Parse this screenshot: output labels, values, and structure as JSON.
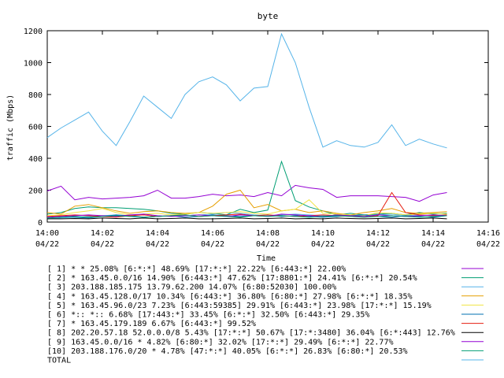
{
  "chart_data": {
    "type": "line",
    "title": "byte",
    "xlabel": "Time",
    "ylabel": "traffic (Mbps)",
    "ylim": [
      0,
      1200
    ],
    "xlim": [
      "14:00",
      "14:16"
    ],
    "yticks": [
      0,
      200,
      400,
      600,
      800,
      1000,
      1200
    ],
    "xticks": [
      {
        "time": "14:00",
        "date": "04/22"
      },
      {
        "time": "14:02",
        "date": "04/22"
      },
      {
        "time": "14:04",
        "date": "04/22"
      },
      {
        "time": "14:06",
        "date": "04/22"
      },
      {
        "time": "14:08",
        "date": "04/22"
      },
      {
        "time": "14:10",
        "date": "04/22"
      },
      {
        "time": "14:12",
        "date": "04/22"
      },
      {
        "time": "14:14",
        "date": "04/22"
      },
      {
        "time": "14:16",
        "date": "04/22"
      }
    ],
    "grid": false,
    "legend_position": "bottom",
    "x": [
      "14:00:00",
      "14:00:30",
      "14:01:00",
      "14:01:30",
      "14:02:00",
      "14:02:30",
      "14:03:00",
      "14:03:30",
      "14:04:00",
      "14:04:30",
      "14:05:00",
      "14:05:30",
      "14:06:00",
      "14:06:30",
      "14:07:00",
      "14:07:30",
      "14:08:00",
      "14:08:30",
      "14:09:00",
      "14:09:30",
      "14:10:00",
      "14:10:30",
      "14:11:00",
      "14:11:30",
      "14:12:00",
      "14:12:30",
      "14:13:00",
      "14:13:30",
      "14:14:00",
      "14:14:30"
    ],
    "series": [
      {
        "name": "[ 1] * * 25.08%  [6:*:*] 48.69% [17:*:*] 22.22% [6:443:*] 22.00%",
        "color": "#9400d3",
        "values": [
          195,
          225,
          140,
          155,
          145,
          150,
          155,
          165,
          200,
          150,
          150,
          160,
          175,
          165,
          170,
          160,
          185,
          165,
          230,
          215,
          205,
          155,
          165,
          165,
          165,
          160,
          155,
          130,
          170,
          185
        ]
      },
      {
        "name": "[ 2] * 163.45.0.0/16 14.90%  [6:443:*] 47.62% [17:8801:*] 24.41% [6:*:*] 20.54%",
        "color": "#009e73",
        "values": [
          50,
          60,
          85,
          95,
          90,
          90,
          85,
          80,
          70,
          55,
          50,
          60,
          55,
          45,
          80,
          60,
          75,
          380,
          135,
          95,
          70,
          45,
          55,
          45,
          50,
          55,
          45,
          60,
          50,
          55
        ]
      },
      {
        "name": "[ 3] 203.188.185.175 13.79.62.200 14.07%  [6:80:52030] 100.00%",
        "color": "#56b4e9",
        "values": [
          20,
          25,
          30,
          35,
          40,
          45,
          35,
          30,
          35,
          40,
          40,
          45,
          50,
          60,
          55,
          45,
          40,
          45,
          50,
          45,
          40,
          35,
          45,
          40,
          45,
          50,
          40,
          45,
          40,
          45
        ]
      },
      {
        "name": "[ 4] * 163.45.128.0/17 10.34%  [6:443:*] 36.80% [6:80:*] 27.98% [6:*:*] 18.35%",
        "color": "#e69f00",
        "values": [
          60,
          50,
          100,
          110,
          90,
          70,
          55,
          65,
          70,
          60,
          55,
          60,
          100,
          175,
          200,
          90,
          110,
          70,
          80,
          60,
          70,
          55,
          45,
          60,
          70,
          85,
          60,
          55,
          60,
          65
        ]
      },
      {
        "name": "[ 5] * 163.45.96.0/23 7.23%  [6:443:59385] 29.91% [6:443:*] 23.98% [17:*:*] 15.19%",
        "color": "#f0e442",
        "values": [
          40,
          45,
          60,
          70,
          85,
          60,
          45,
          50,
          55,
          45,
          50,
          60,
          55,
          60,
          65,
          55,
          50,
          70,
          80,
          140,
          55,
          50,
          45,
          40,
          60,
          55,
          45,
          50,
          55,
          50
        ]
      },
      {
        "name": "[ 6] *:: *:: 6.68%  [17:443:*] 33.45% [6:*:*] 32.50% [6:443:*] 29.35%",
        "color": "#0072b2",
        "values": [
          30,
          35,
          30,
          25,
          35,
          45,
          40,
          30,
          35,
          40,
          30,
          35,
          45,
          40,
          35,
          40,
          45,
          35,
          40,
          35,
          30,
          35,
          40,
          45,
          35,
          30,
          40,
          35,
          30,
          40
        ]
      },
      {
        "name": "[ 7] * 163.45.179.189 6.67%  [6:443:*] 99.52%",
        "color": "#e51e10",
        "values": [
          35,
          40,
          45,
          40,
          35,
          30,
          40,
          45,
          35,
          40,
          45,
          35,
          40,
          45,
          50,
          40,
          45,
          40,
          35,
          40,
          45,
          40,
          35,
          30,
          40,
          185,
          60,
          45,
          40,
          45
        ]
      },
      {
        "name": "[ 8] 202.20.57.18 52.0.0.0/8 5.43%  [17:*:*] 50.67% [17:*:3480] 36.04% [6:*:443] 12.76%",
        "color": "#000000",
        "values": [
          20,
          20,
          22,
          20,
          25,
          22,
          20,
          25,
          20,
          22,
          25,
          20,
          20,
          22,
          25,
          20,
          22,
          25,
          20,
          22,
          20,
          25,
          22,
          20,
          22,
          25,
          20,
          22,
          25,
          20
        ]
      },
      {
        "name": "[ 9] 163.45.0.0/16 * 4.82%  [6:80:*] 32.02% [17:*:*] 29.49% [6:*:*] 22.77%",
        "color": "#9400d3",
        "values": [
          30,
          35,
          40,
          45,
          40,
          35,
          45,
          50,
          40,
          35,
          40,
          45,
          40,
          35,
          45,
          40,
          35,
          50,
          45,
          40,
          35,
          45,
          40,
          35,
          45,
          40,
          35,
          40,
          45,
          40
        ]
      },
      {
        "name": "[10] 203.188.176.0/20 * 4.78%  [47:*:*] 40.05% [6:*:*] 26.83% [6:80:*] 20.53%",
        "color": "#009e73",
        "values": [
          25,
          30,
          35,
          30,
          35,
          40,
          35,
          30,
          35,
          40,
          45,
          35,
          40,
          35,
          30,
          40,
          35,
          40,
          35,
          30,
          35,
          40,
          35,
          30,
          35,
          40,
          35,
          30,
          35,
          40
        ]
      },
      {
        "name": "TOTAL",
        "color": "#56b4e9",
        "values": [
          530,
          590,
          640,
          690,
          570,
          480,
          630,
          790,
          720,
          650,
          800,
          880,
          910,
          860,
          760,
          840,
          850,
          1180,
          1000,
          720,
          470,
          510,
          480,
          470,
          500,
          610,
          480,
          520,
          490,
          465
        ]
      }
    ]
  }
}
